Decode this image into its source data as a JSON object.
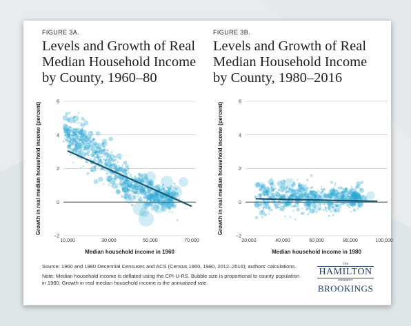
{
  "colors": {
    "bubble": "#2aa7d3",
    "fit_line": "#1b5670",
    "zero_line": "#555555",
    "grid": "#bbbbbb",
    "logo": "#1a3d6d"
  },
  "figure_a": {
    "label": "FIGURE 3A.",
    "title_lines": [
      "Levels and Growth of Real",
      "Median Household Income",
      "by County, 1960–80"
    ]
  },
  "figure_b": {
    "label": "FIGURE 3B.",
    "title_lines": [
      "Levels and Growth of Real",
      "Median Household Income",
      "by County, 1980–2016"
    ]
  },
  "chart_data": [
    {
      "type": "scatter",
      "title": "Levels and Growth of Real Median Household Income by County, 1960–80",
      "xlabel": "Median household income in 1960",
      "ylabel": "Growth in real median household income (percent)",
      "xlim": [
        8000,
        72000
      ],
      "ylim": [
        -2,
        6
      ],
      "x_ticks": [
        "10,000",
        "30,000",
        "50,000",
        "70,000"
      ],
      "x_tick_values": [
        10000,
        30000,
        50000,
        70000
      ],
      "y_ticks": [
        "−2",
        "0",
        "2",
        "4",
        "6"
      ],
      "y_tick_values": [
        -2,
        0,
        2,
        4,
        6
      ],
      "grid": true,
      "fit_line": {
        "x": [
          10000,
          70000
        ],
        "y": [
          3.05,
          -0.25
        ]
      },
      "cloud": {
        "points": [
          [
            10000,
            4.3
          ],
          [
            12000,
            4.0
          ],
          [
            15000,
            3.7
          ],
          [
            18000,
            3.4
          ],
          [
            22000,
            2.9
          ],
          [
            26000,
            2.6
          ],
          [
            30000,
            2.1
          ],
          [
            34000,
            1.7
          ],
          [
            38000,
            1.3
          ],
          [
            42000,
            1.0
          ],
          [
            46000,
            0.7
          ],
          [
            50000,
            0.4
          ],
          [
            55000,
            0.3
          ],
          [
            60000,
            0.2
          ]
        ],
        "spread_y": [
          1.1,
          1.0,
          1.0,
          1.0,
          0.9,
          0.9,
          0.9,
          0.9,
          0.8,
          0.8,
          0.8,
          0.7,
          0.7,
          0.7
        ],
        "samples_per_point": 55
      },
      "large_bubbles": [
        [
          45000,
          -0.4,
          10
        ],
        [
          48000,
          -1.0,
          11
        ],
        [
          52000,
          0.5,
          13
        ],
        [
          56000,
          0.3,
          12
        ],
        [
          44000,
          0.8,
          8
        ],
        [
          58000,
          1.2,
          9
        ],
        [
          62000,
          0.6,
          10
        ],
        [
          66000,
          1.2,
          7
        ],
        [
          40000,
          0.2,
          7
        ],
        [
          54000,
          -0.3,
          9
        ],
        [
          47000,
          -0.6,
          7
        ],
        [
          50000,
          1.5,
          8
        ]
      ]
    },
    {
      "type": "scatter",
      "title": "Levels and Growth of Real Median Household Income by County, 1980–2016",
      "xlabel": "Median household income in 1980",
      "ylabel": "Growth in real median household income (percent)",
      "xlim": [
        18000,
        102000
      ],
      "ylim": [
        -2,
        6
      ],
      "x_ticks": [
        "20,000",
        "40,000",
        "60,000",
        "80,000",
        "100,000"
      ],
      "x_tick_values": [
        20000,
        40000,
        60000,
        80000,
        100000
      ],
      "y_ticks": [
        "−2",
        "0",
        "2",
        "4",
        "6"
      ],
      "y_tick_values": [
        -2,
        0,
        2,
        4,
        6
      ],
      "grid": true,
      "fit_line": {
        "x": [
          24000,
          96000
        ],
        "y": [
          0.2,
          0.05
        ]
      },
      "cloud": {
        "points": [
          [
            26000,
            0.2
          ],
          [
            30000,
            0.3
          ],
          [
            36000,
            0.3
          ],
          [
            42000,
            0.3
          ],
          [
            48000,
            0.3
          ],
          [
            54000,
            0.2
          ],
          [
            60000,
            0.2
          ],
          [
            66000,
            0.2
          ],
          [
            72000,
            0.2
          ],
          [
            78000,
            0.3
          ],
          [
            84000,
            0.3
          ]
        ],
        "spread_y": [
          0.9,
          0.9,
          0.9,
          0.85,
          0.8,
          0.8,
          0.75,
          0.7,
          0.7,
          0.6,
          0.6
        ],
        "samples_per_point": 55
      },
      "large_bubbles": [
        [
          44000,
          1.1,
          8
        ],
        [
          52000,
          0.6,
          7
        ],
        [
          58000,
          0.3,
          10
        ],
        [
          64000,
          0.2,
          9
        ],
        [
          70000,
          0.5,
          8
        ],
        [
          76000,
          0.4,
          7
        ],
        [
          82000,
          0.1,
          8
        ],
        [
          88000,
          0.2,
          6
        ],
        [
          92000,
          0.4,
          6
        ],
        [
          60000,
          -0.3,
          7
        ],
        [
          72000,
          -0.4,
          6
        ]
      ]
    }
  ],
  "footer": {
    "source": "Source: 1960 and 1980 Decennial Censuses and ACS (Census 1960, 1980, 2012–2016); authors’ calculations.",
    "note": "Note: Median household income is deflated using the CPI-U-RS. Bubble size is proportional to county population in 1980. Growth in real median household income is the annualized rate."
  },
  "logo": {
    "the": "THE",
    "hamilton": "HAMILTON",
    "project": "PROJECT",
    "brookings": "BROOKINGS"
  }
}
